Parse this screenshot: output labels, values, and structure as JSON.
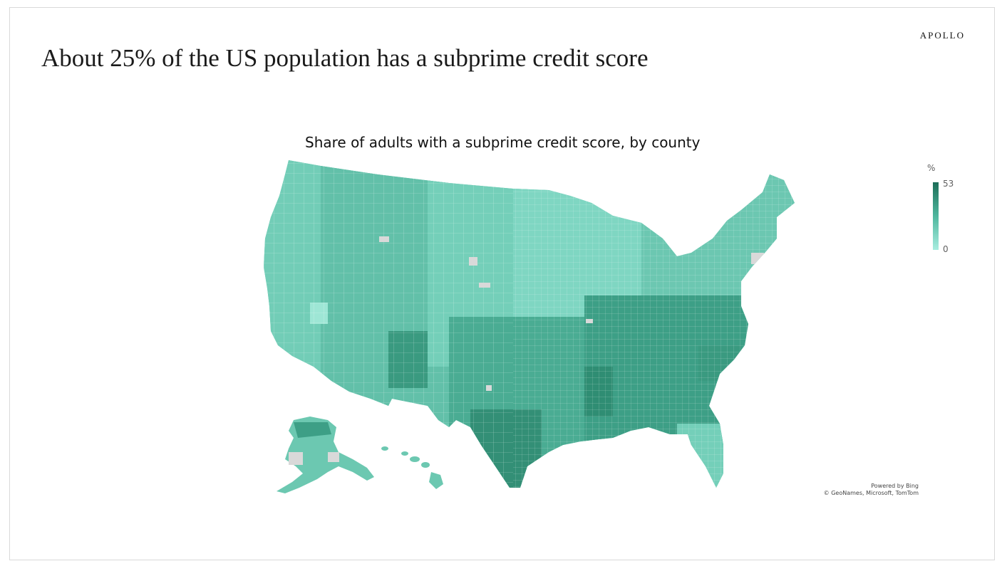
{
  "header": {
    "brand": "APOLLO",
    "title": "About 25% of the US population has a subprime credit score"
  },
  "map": {
    "title": "Share of adults with a subprime credit score, by county",
    "units": "%",
    "scale": {
      "min": 0,
      "max": 53,
      "min_label": "0",
      "max_label": "53",
      "colors": [
        "#a8ede0",
        "#7fd6c2",
        "#5cc1aa",
        "#40a88f",
        "#2b8f77",
        "#1c6e58"
      ]
    },
    "region_colors": {
      "west": "#72cdb7",
      "mountain": "#67c4ad",
      "plains": "#6ccab3",
      "midwest": "#7dd3be",
      "south": "#4aac93",
      "southeast": "#3d9f86",
      "northeast": "#6cc7b1",
      "texas_south": "#3a9a80",
      "florida": "#74cfb9",
      "alaska": "#6cc8b1",
      "hawaii": "#6cc8b1",
      "no_data": "#d9d9d9"
    },
    "attribution": {
      "line1": "Powered by Bing",
      "line2": "© GeoNames, Microsoft, TomTom"
    }
  }
}
